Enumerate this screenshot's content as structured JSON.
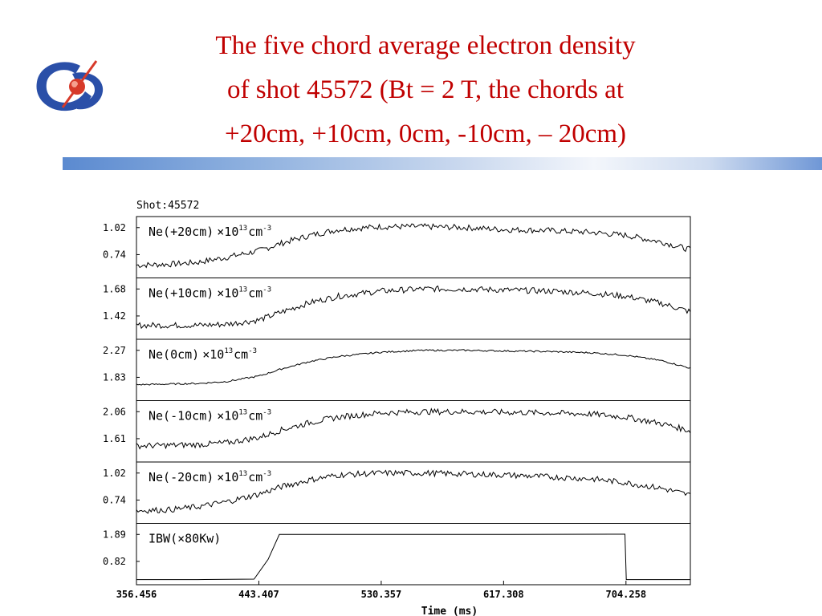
{
  "slide": {
    "title_lines": [
      "The five chord average electron density",
      "of shot 45572 (Bt = 2 T, the chords at",
      "+20cm, +10cm, 0cm, -10cm, – 20cm)"
    ]
  },
  "colors": {
    "title": "#c00000",
    "bar_dark": "#5b8ad0",
    "logo_blue": "#2a4fa8",
    "logo_red": "#d73a2a"
  },
  "chart_data": {
    "type": "line",
    "title": "Shot:45572",
    "xlabel": "Time (ms)",
    "x_ticks": [
      "356.456",
      "443.407",
      "530.357",
      "617.308",
      "704.258"
    ],
    "xlim": [
      356.456,
      750
    ],
    "grid": false,
    "panels": [
      {
        "name": "Ne(+20cm)",
        "unit_main": "×10",
        "unit_exp": "13",
        "unit_tail": "cm",
        "unit_tail_exp": "-3",
        "yticks": [
          1.02,
          0.74
        ],
        "ytick_labels": [
          "1.02",
          "0.74"
        ],
        "x": [
          356.456,
          380,
          400,
          420,
          443.407,
          460,
          480,
          500,
          530.357,
          560,
          590,
          617.308,
          650,
          680,
          704.258,
          730,
          750
        ],
        "y": [
          0.63,
          0.64,
          0.66,
          0.71,
          0.78,
          0.86,
          0.94,
          1.0,
          1.03,
          1.03,
          1.02,
          1.0,
          0.99,
          0.97,
          0.94,
          0.87,
          0.79
        ]
      },
      {
        "name": "Ne(+10cm)",
        "unit_main": "×10",
        "unit_exp": "13",
        "unit_tail": "cm",
        "unit_tail_exp": "-3",
        "yticks": [
          1.68,
          1.42
        ],
        "ytick_labels": [
          "1.68",
          "1.42"
        ],
        "x": [
          356.456,
          380,
          400,
          420,
          443.407,
          460,
          480,
          500,
          530.357,
          560,
          590,
          617.308,
          650,
          680,
          704.258,
          730,
          750
        ],
        "y": [
          1.33,
          1.33,
          1.33,
          1.34,
          1.38,
          1.46,
          1.55,
          1.61,
          1.66,
          1.68,
          1.68,
          1.67,
          1.66,
          1.64,
          1.61,
          1.54,
          1.46
        ]
      },
      {
        "name": "Ne(0cm)",
        "unit_main": "×10",
        "unit_exp": "13",
        "unit_tail": "cm",
        "unit_tail_exp": "-3",
        "yticks": [
          2.27,
          1.83
        ],
        "ytick_labels": [
          "2.27",
          "1.83"
        ],
        "x": [
          356.456,
          380,
          400,
          420,
          443.407,
          460,
          480,
          500,
          530.357,
          560,
          590,
          617.308,
          650,
          680,
          704.258,
          730,
          750
        ],
        "y": [
          1.71,
          1.72,
          1.73,
          1.76,
          1.85,
          1.97,
          2.09,
          2.17,
          2.24,
          2.27,
          2.27,
          2.26,
          2.25,
          2.23,
          2.19,
          2.1,
          1.98
        ]
      },
      {
        "name": "Ne(-10cm)",
        "unit_main": "×10",
        "unit_exp": "13",
        "unit_tail": "cm",
        "unit_tail_exp": "-3",
        "yticks": [
          2.06,
          1.61
        ],
        "ytick_labels": [
          "2.06",
          "1.61"
        ],
        "x": [
          356.456,
          380,
          400,
          420,
          443.407,
          460,
          480,
          500,
          530.357,
          560,
          590,
          617.308,
          650,
          680,
          704.258,
          730,
          750
        ],
        "y": [
          1.49,
          1.5,
          1.51,
          1.54,
          1.63,
          1.76,
          1.88,
          1.97,
          2.04,
          2.06,
          2.06,
          2.05,
          2.04,
          2.02,
          1.97,
          1.86,
          1.74
        ]
      },
      {
        "name": "Ne(-20cm)",
        "unit_main": "×10",
        "unit_exp": "13",
        "unit_tail": "cm",
        "unit_tail_exp": "-3",
        "yticks": [
          1.02,
          0.74
        ],
        "ytick_labels": [
          "1.02",
          "0.74"
        ],
        "x": [
          356.456,
          380,
          400,
          420,
          443.407,
          460,
          480,
          500,
          530.357,
          560,
          590,
          617.308,
          650,
          680,
          704.258,
          730,
          750
        ],
        "y": [
          0.63,
          0.64,
          0.67,
          0.72,
          0.8,
          0.88,
          0.95,
          1.0,
          1.02,
          1.02,
          1.01,
          1.0,
          0.98,
          0.96,
          0.92,
          0.86,
          0.79
        ]
      },
      {
        "name": "IBW(×80Kw)",
        "unit_main": "",
        "unit_exp": "",
        "unit_tail": "",
        "unit_tail_exp": "",
        "yticks": [
          1.89,
          0.82
        ],
        "ytick_labels": [
          "1.89",
          "0.82"
        ],
        "x": [
          356.456,
          400,
          440,
          450,
          458,
          600,
          700,
          703.5,
          704.5,
          750
        ],
        "y": [
          0.1,
          0.1,
          0.12,
          0.9,
          1.89,
          1.89,
          1.9,
          1.9,
          0.1,
          0.1
        ]
      }
    ]
  }
}
